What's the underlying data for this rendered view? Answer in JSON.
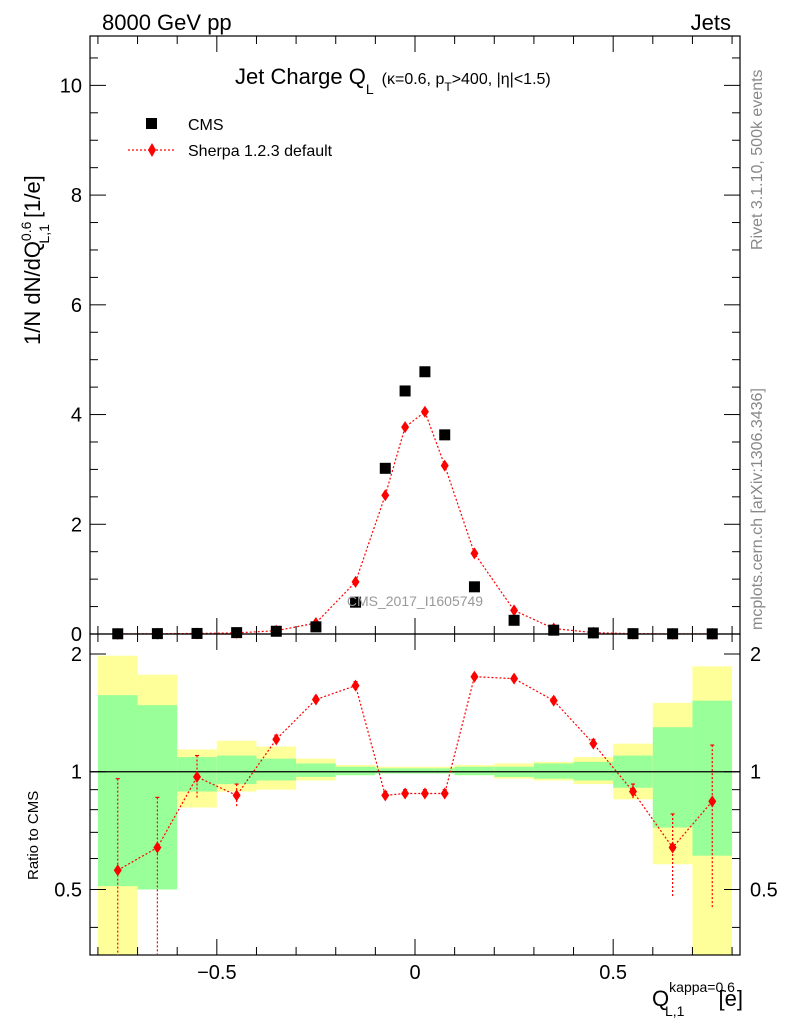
{
  "header": {
    "left": "8000 GeV pp",
    "right": "Jets",
    "side_rivet": "Rivet 3.1.10,  500k events",
    "side_mcplots": "mcplots.cern.ch [arXiv:1306.3436]",
    "watermark": "CMS_2017_I1605749"
  },
  "title": {
    "main": "Jet Charge Q",
    "main_sub": "L",
    "cond_a": "(κ=0.6, p",
    "cond_sub": "T",
    "cond_b": ">400, |η|<1.5)"
  },
  "legend": {
    "cms": "CMS",
    "sherpa": "Sherpa 1.2.3 default"
  },
  "axes": {
    "ylabel_main_a": "1/N dN/dQ",
    "ylabel_main_sup": "0.6",
    "ylabel_main_sub": "L,1",
    "ylabel_main_b": " [1/e]",
    "ylabel_ratio": "Ratio to CMS",
    "xlabel_a": "Q",
    "xlabel_sup": "kappa=0.6",
    "xlabel_sub": "L,1",
    "xlabel_b": " [e]"
  },
  "colors": {
    "data": "#000000",
    "mc": "#ff0000",
    "band_inner": "#99ff99",
    "band_outer": "#ffff99"
  },
  "chart_data": {
    "type": "scatter",
    "x": [
      -0.75,
      -0.65,
      -0.55,
      -0.45,
      -0.35,
      -0.25,
      -0.15,
      -0.075,
      -0.025,
      0.025,
      0.075,
      0.15,
      0.25,
      0.35,
      0.45,
      0.55,
      0.65,
      0.75
    ],
    "x_edges": [
      -0.8,
      -0.7,
      -0.6,
      -0.5,
      -0.4,
      -0.3,
      -0.2,
      -0.1,
      -0.05,
      0.0,
      0.05,
      0.1,
      0.2,
      0.3,
      0.4,
      0.5,
      0.6,
      0.7,
      0.8
    ],
    "xlim": [
      -0.82,
      0.82
    ],
    "main": {
      "ylim": [
        0,
        10.9
      ],
      "yticks": [
        0,
        2,
        4,
        6,
        8,
        10
      ],
      "series": [
        {
          "name": "CMS",
          "values": [
            0.004,
            0.007,
            0.01,
            0.025,
            0.05,
            0.13,
            0.58,
            3.02,
            4.43,
            4.78,
            3.63,
            0.86,
            0.25,
            0.07,
            0.02,
            0.006,
            0.004,
            0.003
          ]
        },
        {
          "name": "Sherpa 1.2.3 default",
          "values": [
            0.002,
            0.005,
            0.01,
            0.02,
            0.06,
            0.2,
            0.95,
            2.53,
            3.77,
            4.05,
            3.07,
            1.47,
            0.43,
            0.1,
            0.025,
            0.005,
            0.003,
            0.002
          ]
        }
      ]
    },
    "ratio": {
      "ylim": [
        0.34,
        2.25
      ],
      "yticks": [
        0.5,
        1,
        2
      ],
      "series": [
        {
          "name": "Sherpa 1.2.3 default",
          "values": [
            0.56,
            0.64,
            0.97,
            0.87,
            1.21,
            1.53,
            1.66,
            0.87,
            0.88,
            0.88,
            0.88,
            1.75,
            1.73,
            1.52,
            1.18,
            0.89,
            0.64,
            0.84
          ]
        }
      ],
      "mc_err_up": [
        0.96,
        0.86,
        1.1,
        0.93,
        1.24,
        1.56,
        1.7,
        0.89,
        0.9,
        0.9,
        0.9,
        1.78,
        1.76,
        1.55,
        1.21,
        0.93,
        0.78,
        1.17
      ],
      "mc_err_lo": [
        0.3,
        0.3,
        0.85,
        0.81,
        1.18,
        1.5,
        1.62,
        0.85,
        0.86,
        0.86,
        0.86,
        1.72,
        1.7,
        1.49,
        1.15,
        0.85,
        0.48,
        0.45
      ],
      "band_inner_up": [
        1.57,
        1.48,
        1.09,
        1.1,
        1.08,
        1.05,
        1.03,
        1.02,
        1.02,
        1.02,
        1.02,
        1.03,
        1.03,
        1.05,
        1.06,
        1.1,
        1.3,
        1.52
      ],
      "band_inner_lo": [
        0.51,
        0.5,
        0.89,
        0.93,
        0.95,
        0.97,
        0.98,
        0.99,
        0.99,
        0.99,
        0.99,
        0.98,
        0.97,
        0.96,
        0.95,
        0.91,
        0.72,
        0.61
      ],
      "band_outer_up": [
        1.98,
        1.77,
        1.14,
        1.2,
        1.16,
        1.08,
        1.04,
        1.03,
        1.03,
        1.03,
        1.03,
        1.04,
        1.05,
        1.06,
        1.09,
        1.18,
        1.5,
        1.86
      ],
      "band_outer_lo": [
        0.3,
        0.72,
        0.81,
        0.89,
        0.9,
        0.95,
        0.98,
        0.99,
        0.99,
        0.99,
        0.99,
        0.98,
        0.96,
        0.95,
        0.93,
        0.85,
        0.58,
        0.3
      ]
    },
    "xticks": [
      -0.5,
      0,
      0.5
    ],
    "xtick_labels": [
      "−0.5",
      "0",
      "0.5"
    ]
  }
}
